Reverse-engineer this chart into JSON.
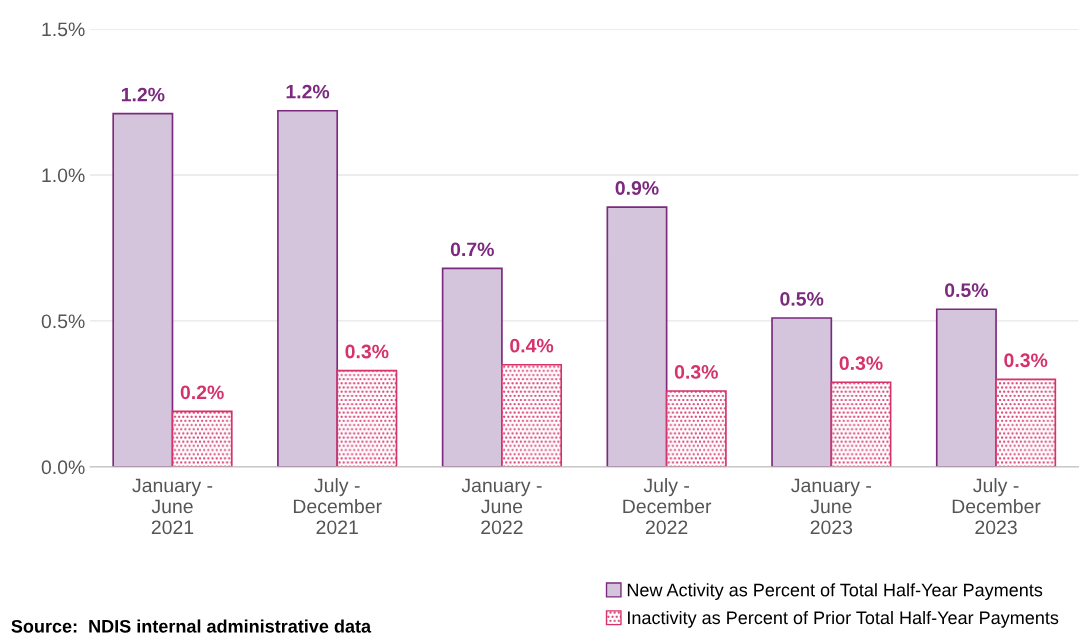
{
  "chart_data": {
    "type": "bar",
    "categories": [
      "January -\nJune\n2021",
      "July -\nDecember\n2021",
      "January -\nJune\n2022",
      "July -\nDecember\n2022",
      "January -\nJune\n2023",
      "July -\nDecember\n2023"
    ],
    "series": [
      {
        "name": "New Activity as Percent of Total Half-Year Payments",
        "color": "#d5c5dc",
        "values": [
          1.21,
          1.22,
          0.68,
          0.89,
          0.51,
          0.54
        ],
        "value_labels": [
          "1.2%",
          "1.2%",
          "0.7%",
          "0.9%",
          "0.5%",
          "0.5%"
        ]
      },
      {
        "name": "Inactivity as Percent of Prior Total Half-Year Payments",
        "color": "#d6336c",
        "values": [
          0.19,
          0.33,
          0.35,
          0.26,
          0.29,
          0.3
        ],
        "value_labels": [
          "0.2%",
          "0.3%",
          "0.4%",
          "0.3%",
          "0.3%",
          "0.3%"
        ]
      }
    ],
    "ylim": [
      0,
      1.5
    ],
    "yticks": [
      {
        "value": 0,
        "label": "0.0%"
      },
      {
        "value": 0.5,
        "label": "0.5%"
      },
      {
        "value": 1.0,
        "label": "1.0%"
      },
      {
        "value": 1.5,
        "label": "1.5%"
      }
    ],
    "grid": "y",
    "legend": "bottom right",
    "annotations": [
      "Source:  NDIS internal administrative data"
    ]
  }
}
